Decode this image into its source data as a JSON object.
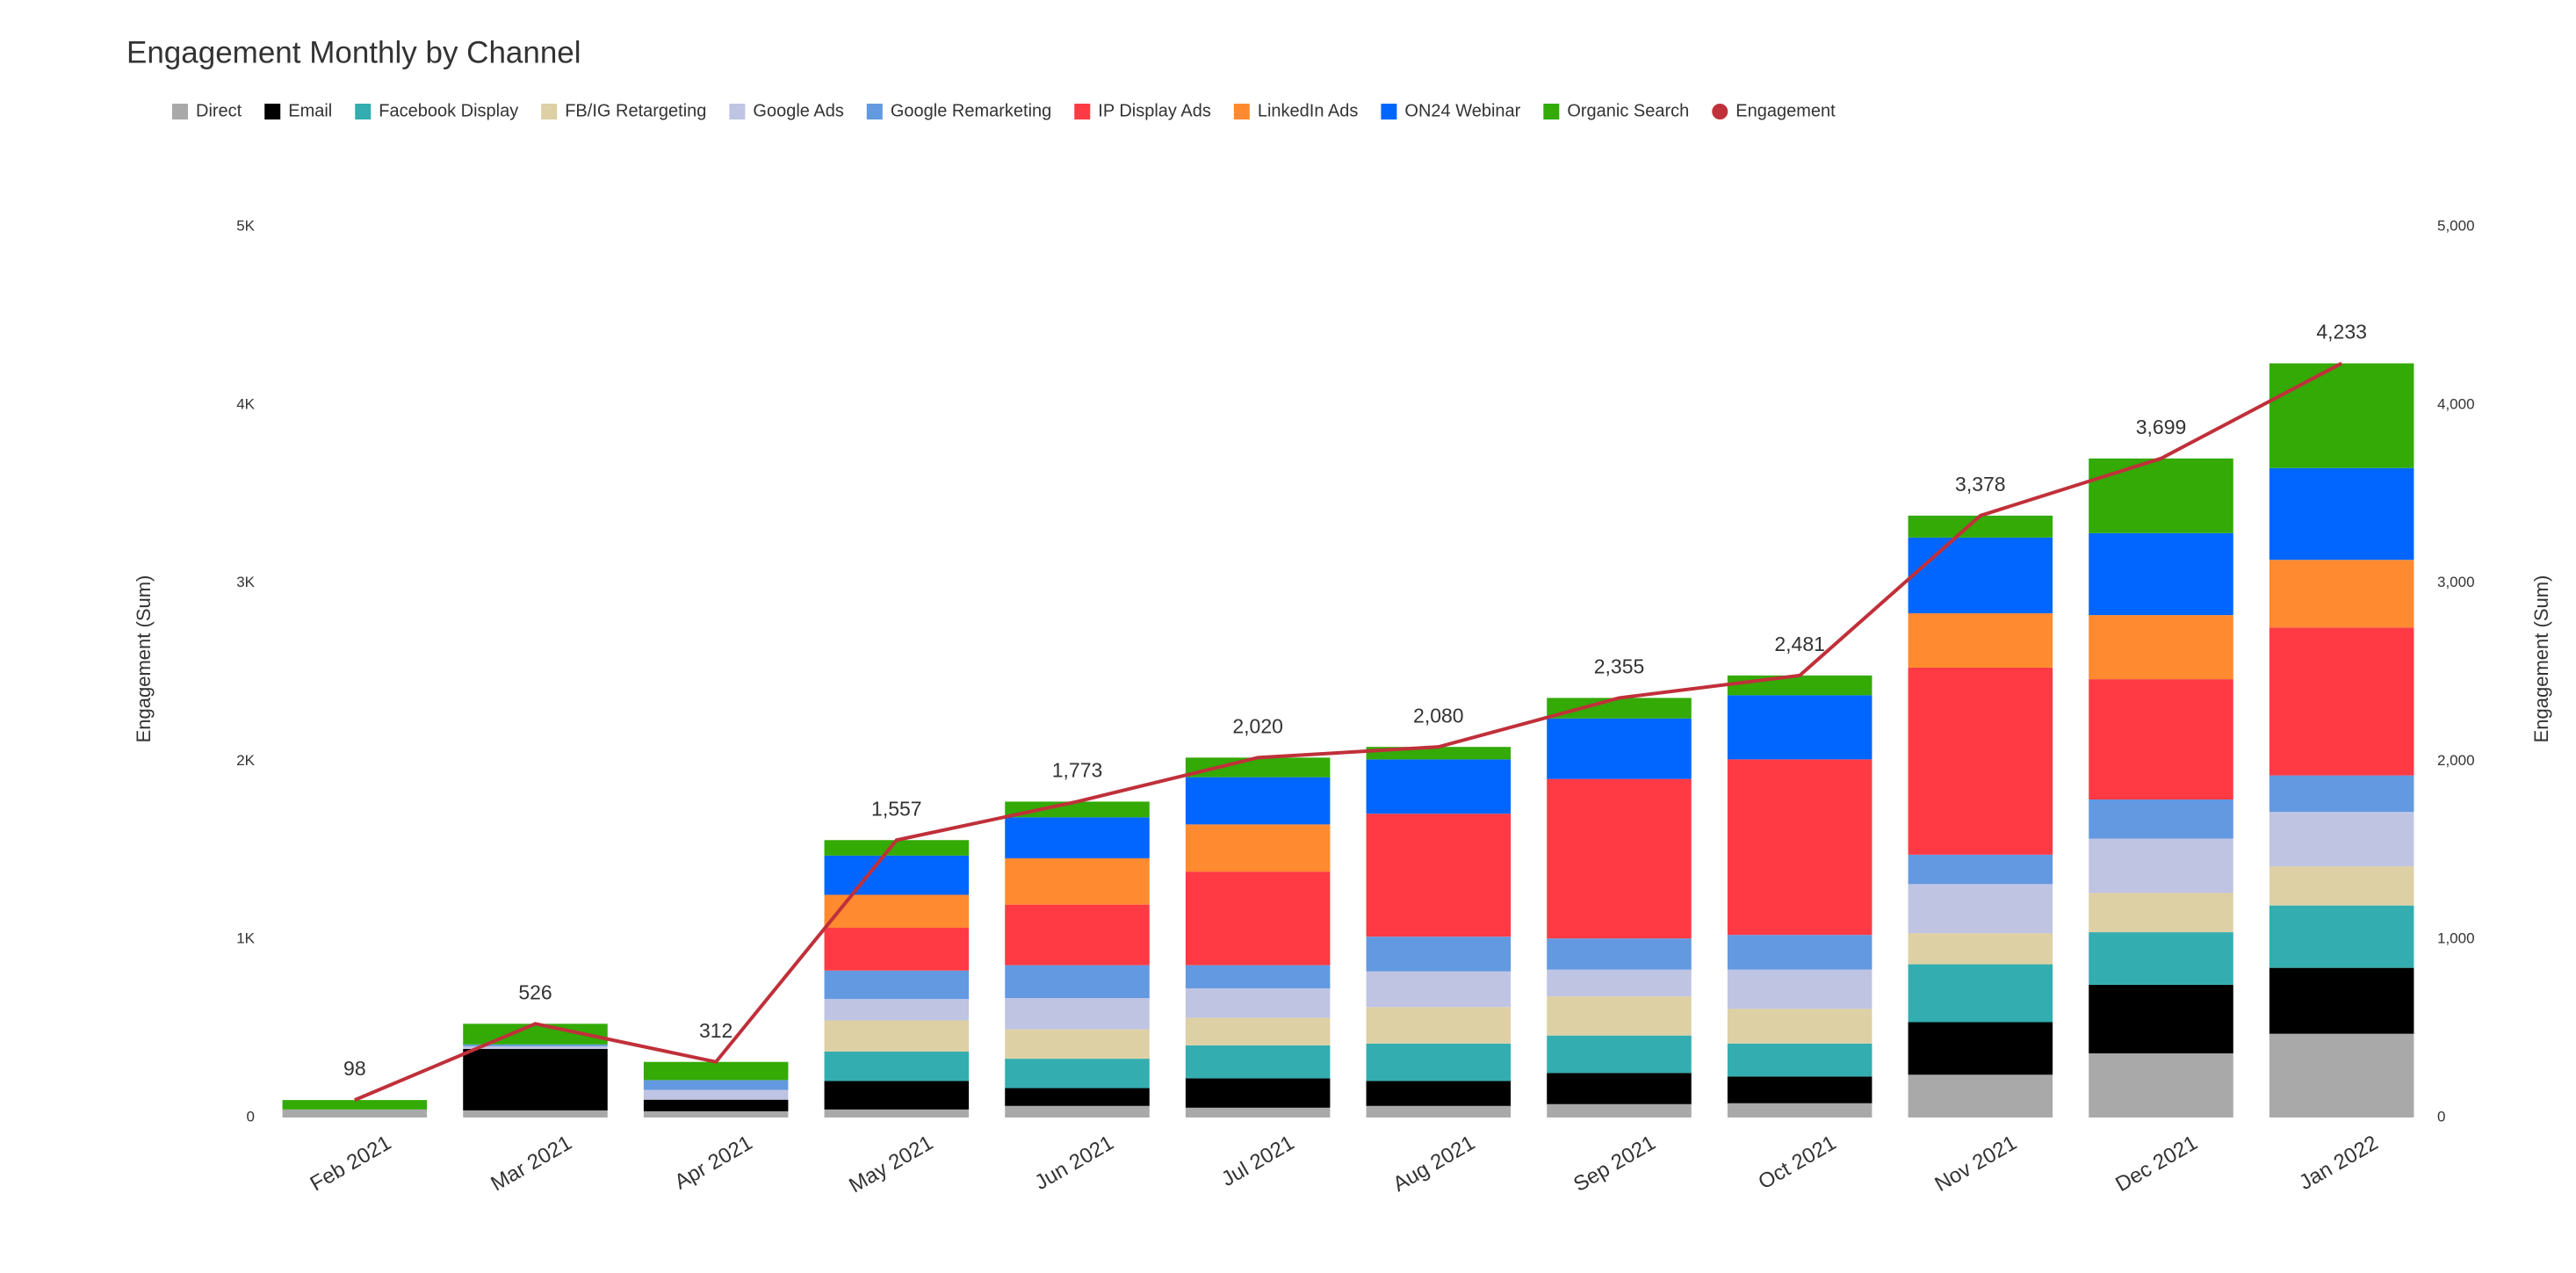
{
  "chart_data": {
    "type": "bar",
    "stacked": true,
    "title": "Engagement Monthly by Channel",
    "y_label": "Engagement (Sum)",
    "y2_label": "Engagement (Sum)",
    "categories": [
      "Feb 2021",
      "Mar 2021",
      "Apr 2021",
      "May 2021",
      "Jun 2021",
      "Jul 2021",
      "Aug 2021",
      "Sep 2021",
      "Oct 2021",
      "Nov 2021",
      "Dec 2021",
      "Jan 2022"
    ],
    "ylim": [
      0,
      5000
    ],
    "yticks": [
      0,
      {
        "value": 1000,
        "label": "1K"
      },
      {
        "value": 2000,
        "label": "2K"
      },
      {
        "value": 3000,
        "label": "3K"
      },
      {
        "value": 4000,
        "label": "4K"
      },
      {
        "value": 5000,
        "label": "5K"
      }
    ],
    "y2lim": [
      0,
      5000
    ],
    "y2ticks": [
      0,
      {
        "value": 1000,
        "label": "1,000"
      },
      {
        "value": 2000,
        "label": "2,000"
      },
      {
        "value": 3000,
        "label": "3,000"
      },
      {
        "value": 4000,
        "label": "4,000"
      },
      {
        "value": 5000,
        "label": "5,000"
      }
    ],
    "grid": false,
    "legend": "top-left",
    "series": [
      {
        "name": "Direct",
        "color": "#a9a9a9",
        "values": [
          45,
          40,
          35,
          45,
          65,
          55,
          65,
          75,
          80,
          240,
          360,
          470
        ]
      },
      {
        "name": "Email",
        "color": "#000000",
        "values": [
          0,
          345,
          65,
          160,
          100,
          165,
          140,
          175,
          150,
          295,
          385,
          370
        ]
      },
      {
        "name": "Facebook Display",
        "color": "#33adb0",
        "values": [
          0,
          0,
          0,
          165,
          165,
          185,
          210,
          210,
          185,
          325,
          295,
          350
        ]
      },
      {
        "name": "FB/IG Retargeting",
        "color": "#ddd0a5",
        "values": [
          0,
          0,
          0,
          175,
          165,
          155,
          205,
          220,
          195,
          175,
          220,
          220
        ]
      },
      {
        "name": "Google Ads",
        "color": "#c0c4e3",
        "values": [
          0,
          15,
          55,
          120,
          175,
          165,
          200,
          150,
          220,
          275,
          305,
          305
        ]
      },
      {
        "name": "Google Remarketing",
        "color": "#6399e0",
        "values": [
          0,
          10,
          55,
          160,
          185,
          130,
          195,
          175,
          195,
          165,
          220,
          205
        ]
      },
      {
        "name": "IP Display Ads",
        "color": "#ff3a44",
        "values": [
          0,
          0,
          0,
          240,
          340,
          525,
          690,
          895,
          985,
          1050,
          675,
          830
        ]
      },
      {
        "name": "LinkedIn Ads",
        "color": "#ff8a30",
        "values": [
          0,
          0,
          0,
          185,
          260,
          265,
          0,
          0,
          0,
          305,
          360,
          380
        ]
      },
      {
        "name": "ON24 Webinar",
        "color": "#0066ff",
        "values": [
          0,
          0,
          0,
          220,
          230,
          265,
          305,
          340,
          360,
          425,
          460,
          515
        ]
      },
      {
        "name": "Organic Search",
        "color": "#33aa06",
        "values": [
          53,
          116,
          102,
          87,
          88,
          110,
          70,
          115,
          111,
          123,
          419,
          588
        ]
      },
      {
        "name": "Engagement",
        "color": "#c0303a",
        "type": "line",
        "axis": "y2",
        "values": [
          98,
          526,
          312,
          1557,
          1773,
          2020,
          2080,
          2355,
          2481,
          3378,
          3699,
          4233
        ],
        "value_labels": [
          "98",
          "526",
          "312",
          "1,557",
          "1,773",
          "2,020",
          "2,080",
          "2,355",
          "2,481",
          "3,378",
          "3,699",
          "4,233"
        ]
      }
    ]
  }
}
